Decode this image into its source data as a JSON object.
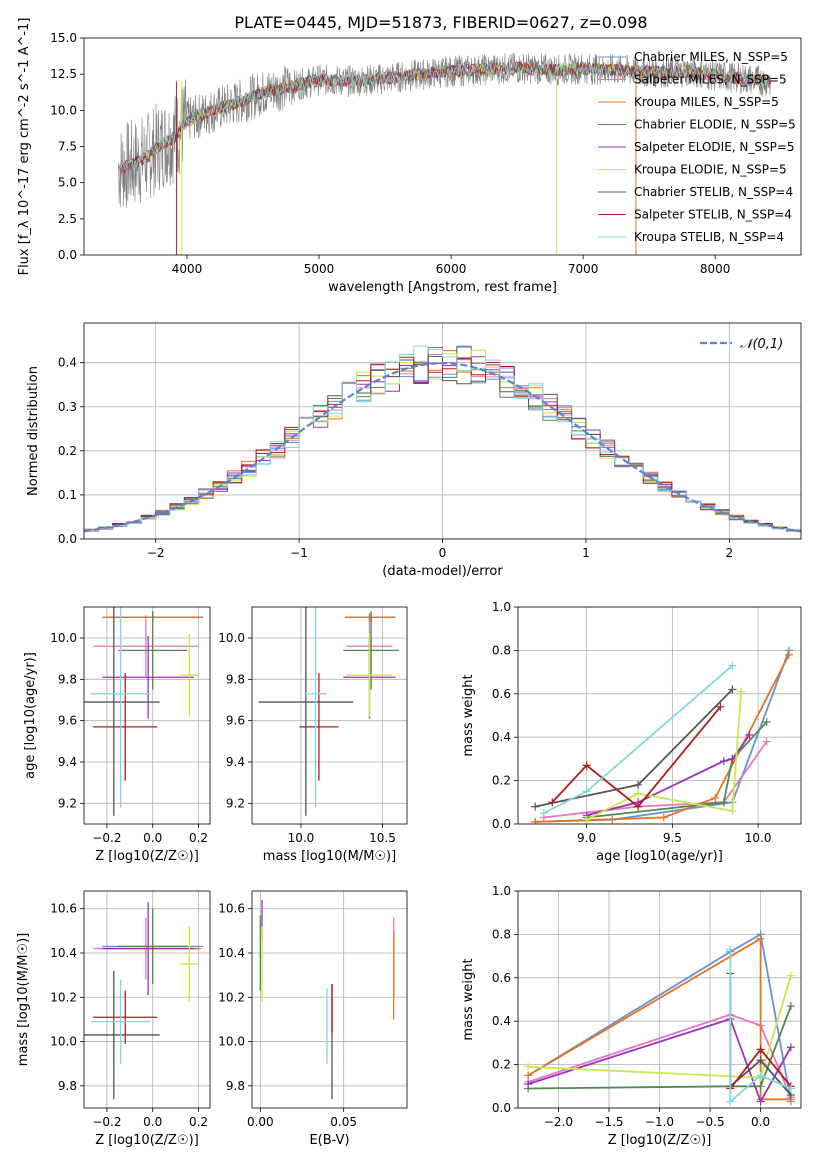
{
  "title": "PLATE=0445, MJD=51873, FIBERID=0627, z=0.098",
  "colors": {
    "Chabrier MILES": "#6a8fd6",
    "Salpeter MILES": "#e377c2",
    "Kroupa MILES": "#e8731e",
    "Chabrier ELODIE": "#4f8a4f",
    "Salpeter ELODIE": "#9b30b8",
    "Kroupa ELODIE": "#cde64a",
    "Chabrier STELIB": "#555555",
    "Salpeter STELIB": "#b01c1c",
    "Kroupa STELIB": "#7fd8e0"
  },
  "chart_data": [
    {
      "type": "line",
      "name": "spectrum",
      "xlabel": "wavelength [Angstrom, rest frame]",
      "ylabel": "Flux [f_λ 10^-17 erg cm^-2 s^-1 A^-1]",
      "xlim": [
        3220,
        8650
      ],
      "ylim": [
        0,
        15
      ],
      "xticks": [
        "4000",
        "5000",
        "6000",
        "7000",
        "8000"
      ],
      "yticks": [
        "0.0",
        "2.5",
        "5.0",
        "7.5",
        "10.0",
        "12.5",
        "15.0"
      ],
      "grid": false,
      "legend": "right",
      "observed": {
        "color": "#808080",
        "x": [
          3500,
          3600,
          3700,
          3800,
          3900,
          4000,
          4200,
          4400,
          4600,
          4800,
          5000,
          5200,
          5400,
          5600,
          5800,
          6000,
          6200,
          6400,
          6600,
          6800,
          7000,
          7200,
          7400,
          7600,
          7800,
          8000,
          8200,
          8400
        ],
        "y": [
          6.0,
          6.3,
          6.8,
          7.6,
          8.1,
          9.3,
          10.0,
          10.6,
          11.3,
          11.7,
          12.1,
          12.0,
          12.1,
          12.3,
          12.5,
          12.7,
          12.8,
          12.9,
          12.9,
          12.8,
          12.9,
          12.8,
          12.7,
          12.6,
          12.7,
          12.4,
          12.2,
          12.0
        ]
      },
      "series": [
        {
          "name": "Chabrier MILES, N_SSP=5"
        },
        {
          "name": "Salpeter MILES, N_SSP=5"
        },
        {
          "name": "Kroupa MILES, N_SSP=5"
        },
        {
          "name": "Chabrier ELODIE, N_SSP=5"
        },
        {
          "name": "Salpeter ELODIE, N_SSP=5"
        },
        {
          "name": "Kroupa ELODIE, N_SSP=5"
        },
        {
          "name": "Chabrier STELIB, N_SSP=4"
        },
        {
          "name": "Salpeter STELIB, N_SSP=4"
        },
        {
          "name": "Kroupa STELIB, N_SSP=4"
        }
      ]
    },
    {
      "type": "bar",
      "name": "residual-histogram",
      "xlabel": "(data-model)/error",
      "ylabel": "Normed distribution",
      "xlim": [
        -2.5,
        2.5
      ],
      "ylim": [
        0,
        0.49
      ],
      "xticks": [
        "−2",
        "−1",
        "0",
        "1",
        "2"
      ],
      "yticks": [
        "0.0",
        "0.1",
        "0.2",
        "0.3",
        "0.4"
      ],
      "grid": true,
      "legend": "top-right",
      "bin_width": 0.1,
      "reference": {
        "name": "𝒩(0,1)",
        "mean": 0,
        "sigma": 1
      }
    },
    {
      "type": "scatter",
      "name": "age-vs-Z",
      "xlabel": "Z [log10(Z/Z☉)]",
      "ylabel": "age [log10(age/yr)]",
      "xlim": [
        -0.3,
        0.25
      ],
      "ylim": [
        9.1,
        10.15
      ],
      "xticks": [
        "−0.2",
        "0.0",
        "0.2"
      ],
      "yticks": [
        "9.2",
        "9.4",
        "9.6",
        "9.8",
        "10.0"
      ],
      "grid": true,
      "points": [
        {
          "series": "Chabrier MILES",
          "x": 0.0,
          "y": 10.1,
          "xerr": 0.22,
          "yerr": 0.02
        },
        {
          "series": "Salpeter MILES",
          "x": -0.03,
          "y": 9.96,
          "xerr": 0.23,
          "yerr": 0.15
        },
        {
          "series": "Kroupa MILES",
          "x": 0.0,
          "y": 10.1,
          "xerr": 0.21,
          "yerr": 0.02
        },
        {
          "series": "Chabrier ELODIE",
          "x": 0.0,
          "y": 9.94,
          "xerr": 0.15,
          "yerr": 0.19
        },
        {
          "series": "Salpeter ELODIE",
          "x": -0.02,
          "y": 9.81,
          "xerr": 0.2,
          "yerr": 0.2
        },
        {
          "series": "Kroupa ELODIE",
          "x": 0.16,
          "y": 9.82,
          "xerr": 0.04,
          "yerr": 0.2
        },
        {
          "series": "Chabrier STELIB",
          "x": -0.17,
          "y": 9.69,
          "xerr": 0.2,
          "yerr": 0.55
        },
        {
          "series": "Salpeter STELIB",
          "x": -0.12,
          "y": 9.57,
          "xerr": 0.14,
          "yerr": 0.26
        },
        {
          "series": "Kroupa STELIB",
          "x": -0.14,
          "y": 9.73,
          "xerr": 0.13,
          "yerr": 0.55
        }
      ]
    },
    {
      "type": "scatter",
      "name": "age-vs-mass",
      "xlabel": "mass [log10(M/M☉)]",
      "ylabel": "",
      "xlim": [
        9.7,
        10.65
      ],
      "ylim": [
        9.1,
        10.15
      ],
      "xticks": [
        "10.0",
        "10.5"
      ],
      "yticks": [
        "9.2",
        "9.4",
        "9.6",
        "9.8",
        "10.0"
      ],
      "grid": true,
      "points": [
        {
          "series": "Chabrier MILES",
          "x": 10.43,
          "y": 10.1,
          "xerr": 0.15,
          "yerr": 0.02
        },
        {
          "series": "Salpeter MILES",
          "x": 10.42,
          "y": 9.96,
          "xerr": 0.14,
          "yerr": 0.15
        },
        {
          "series": "Kroupa MILES",
          "x": 10.42,
          "y": 10.1,
          "xerr": 0.15,
          "yerr": 0.02
        },
        {
          "series": "Chabrier ELODIE",
          "x": 10.43,
          "y": 9.94,
          "xerr": 0.17,
          "yerr": 0.19
        },
        {
          "series": "Salpeter ELODIE",
          "x": 10.42,
          "y": 9.81,
          "xerr": 0.16,
          "yerr": 0.2
        },
        {
          "series": "Kroupa ELODIE",
          "x": 10.42,
          "y": 9.82,
          "xerr": 0.14,
          "yerr": 0.2
        },
        {
          "series": "Chabrier STELIB",
          "x": 10.03,
          "y": 9.69,
          "xerr": 0.29,
          "yerr": 0.55
        },
        {
          "series": "Salpeter STELIB",
          "x": 10.11,
          "y": 9.57,
          "xerr": 0.12,
          "yerr": 0.26
        },
        {
          "series": "Kroupa STELIB",
          "x": 10.09,
          "y": 9.73,
          "xerr": 0.07,
          "yerr": 0.55
        }
      ]
    },
    {
      "type": "line",
      "name": "mass-weight-vs-age",
      "xlabel": "age [log10(age/yr)]",
      "ylabel": "mass weight",
      "xlim": [
        8.6,
        10.25
      ],
      "ylim": [
        0,
        1
      ],
      "xticks": [
        "9.0",
        "9.5",
        "10.0"
      ],
      "yticks": [
        "0.0",
        "0.2",
        "0.4",
        "0.6",
        "0.8",
        "1.0"
      ],
      "grid": true,
      "series": [
        {
          "series": "Chabrier MILES",
          "x": [
            8.7,
            9.15,
            9.85,
            10.18
          ],
          "y": [
            0.01,
            0.02,
            0.1,
            0.8
          ]
        },
        {
          "series": "Salpeter MILES",
          "x": [
            8.75,
            9.3,
            9.8,
            10.05
          ],
          "y": [
            0.03,
            0.08,
            0.1,
            0.38
          ]
        },
        {
          "series": "Kroupa MILES",
          "x": [
            8.7,
            9.45,
            9.75,
            10.18
          ],
          "y": [
            0.01,
            0.03,
            0.12,
            0.78
          ]
        },
        {
          "series": "Chabrier ELODIE",
          "x": [
            9.0,
            9.8,
            9.85,
            10.05
          ],
          "y": [
            0.03,
            0.1,
            0.3,
            0.47
          ]
        },
        {
          "series": "Salpeter ELODIE",
          "x": [
            9.0,
            9.3,
            9.8,
            9.85,
            9.95
          ],
          "y": [
            0.04,
            0.1,
            0.29,
            0.3,
            0.41
          ]
        },
        {
          "series": "Kroupa ELODIE",
          "x": [
            9.0,
            9.3,
            9.85,
            9.9
          ],
          "y": [
            0.02,
            0.14,
            0.06,
            0.61
          ]
        },
        {
          "series": "Chabrier STELIB",
          "x": [
            8.7,
            9.3,
            9.85
          ],
          "y": [
            0.08,
            0.18,
            0.62
          ]
        },
        {
          "series": "Salpeter STELIB",
          "x": [
            8.8,
            9.0,
            9.3,
            9.78
          ],
          "y": [
            0.1,
            0.27,
            0.08,
            0.54
          ]
        },
        {
          "series": "Kroupa STELIB",
          "x": [
            8.75,
            9.0,
            9.85
          ],
          "y": [
            0.05,
            0.15,
            0.73
          ]
        }
      ]
    },
    {
      "type": "scatter",
      "name": "mass-vs-Z",
      "xlabel": "Z [log10(Z/Z☉)]",
      "ylabel": "mass [log10(M/M☉)]",
      "xlim": [
        -0.3,
        0.25
      ],
      "ylim": [
        9.7,
        10.68
      ],
      "xticks": [
        "−0.2",
        "0.0",
        "0.2"
      ],
      "yticks": [
        "9.8",
        "10.0",
        "10.2",
        "10.4",
        "10.6"
      ],
      "grid": true,
      "points": [
        {
          "series": "Chabrier MILES",
          "x": 0.0,
          "y": 10.43,
          "xerr": 0.22,
          "yerr": 0.02
        },
        {
          "series": "Salpeter MILES",
          "x": -0.03,
          "y": 10.42,
          "xerr": 0.23,
          "yerr": 0.14
        },
        {
          "series": "Kroupa MILES",
          "x": 0.0,
          "y": 10.42,
          "xerr": 0.21,
          "yerr": 0.02
        },
        {
          "series": "Chabrier ELODIE",
          "x": 0.0,
          "y": 10.43,
          "xerr": 0.15,
          "yerr": 0.17
        },
        {
          "series": "Salpeter ELODIE",
          "x": -0.02,
          "y": 10.42,
          "xerr": 0.2,
          "yerr": 0.21
        },
        {
          "series": "Kroupa ELODIE",
          "x": 0.16,
          "y": 10.35,
          "xerr": 0.04,
          "yerr": 0.17
        },
        {
          "series": "Chabrier STELIB",
          "x": -0.17,
          "y": 10.03,
          "xerr": 0.2,
          "yerr": 0.29
        },
        {
          "series": "Salpeter STELIB",
          "x": -0.12,
          "y": 10.11,
          "xerr": 0.14,
          "yerr": 0.12
        },
        {
          "series": "Kroupa STELIB",
          "x": -0.14,
          "y": 10.09,
          "xerr": 0.13,
          "yerr": 0.19
        }
      ]
    },
    {
      "type": "scatter",
      "name": "mass-vs-ebv",
      "xlabel": "E(B-V)",
      "ylabel": "",
      "xlim": [
        -0.005,
        0.088
      ],
      "ylim": [
        9.7,
        10.68
      ],
      "xticks": [
        "0.00",
        "0.05"
      ],
      "yticks": [
        "9.8",
        "10.0",
        "10.2",
        "10.4",
        "10.6"
      ],
      "grid": true,
      "points": [
        {
          "series": "Chabrier MILES",
          "x": 0.08,
          "y": 10.35,
          "yerr": 0.15
        },
        {
          "series": "Salpeter MILES",
          "x": 0.08,
          "y": 10.4,
          "yerr": 0.16
        },
        {
          "series": "Kroupa MILES",
          "x": 0.08,
          "y": 10.3,
          "yerr": 0.2
        },
        {
          "series": "Chabrier ELODIE",
          "x": 0.0,
          "y": 10.4,
          "yerr": 0.17
        },
        {
          "series": "Salpeter ELODIE",
          "x": 0.001,
          "y": 10.55,
          "yerr": 0.09
        },
        {
          "series": "Kroupa ELODIE",
          "x": 0.001,
          "y": 10.35,
          "yerr": 0.17
        },
        {
          "series": "Chabrier STELIB",
          "x": 0.043,
          "y": 10.0,
          "yerr": 0.26
        },
        {
          "series": "Salpeter STELIB",
          "x": 0.043,
          "y": 10.15,
          "yerr": 0.11
        },
        {
          "series": "Kroupa STELIB",
          "x": 0.04,
          "y": 10.07,
          "yerr": 0.17
        }
      ]
    },
    {
      "type": "line",
      "name": "mass-weight-vs-Z",
      "xlabel": "Z [log10(Z/Z☉)]",
      "ylabel": "mass weight",
      "xlim": [
        -2.4,
        0.4
      ],
      "ylim": [
        0,
        1
      ],
      "xticks": [
        "−2.0",
        "−1.5",
        "−1.0",
        "−0.5",
        "0.0"
      ],
      "yticks": [
        "0.0",
        "0.2",
        "0.4",
        "0.6",
        "0.8",
        "1.0"
      ],
      "grid": true,
      "series": [
        {
          "series": "Chabrier MILES",
          "x": [
            -2.3,
            -0.3,
            0.0,
            0.3
          ],
          "y": [
            0.15,
            0.72,
            0.8,
            0.03
          ]
        },
        {
          "series": "Salpeter MILES",
          "x": [
            -2.3,
            -0.3,
            0.0,
            0.3
          ],
          "y": [
            0.12,
            0.43,
            0.38,
            0.05
          ]
        },
        {
          "series": "Kroupa MILES",
          "x": [
            -2.3,
            0.0,
            0.0,
            0.3
          ],
          "y": [
            0.15,
            0.78,
            0.04,
            0.04
          ]
        },
        {
          "series": "Chabrier ELODIE",
          "x": [
            -2.3,
            -0.3,
            0.0,
            0.3
          ],
          "y": [
            0.09,
            0.1,
            0.1,
            0.47
          ]
        },
        {
          "series": "Salpeter ELODIE",
          "x": [
            -2.3,
            -0.3,
            0.0,
            0.3
          ],
          "y": [
            0.11,
            0.41,
            0.03,
            0.28
          ]
        },
        {
          "series": "Kroupa ELODIE",
          "x": [
            -2.3,
            0.0,
            0.3
          ],
          "y": [
            0.19,
            0.14,
            0.61
          ]
        },
        {
          "series": "Chabrier STELIB",
          "x": [
            -0.3,
            -0.3,
            0.0,
            0.3
          ],
          "y": [
            0.62,
            0.1,
            0.22,
            0.06
          ]
        },
        {
          "series": "Salpeter STELIB",
          "x": [
            -0.3,
            0.0,
            0.3
          ],
          "y": [
            0.09,
            0.27,
            0.1
          ]
        },
        {
          "series": "Kroupa STELIB",
          "x": [
            -0.3,
            -0.3,
            0.0,
            0.3
          ],
          "y": [
            0.73,
            0.03,
            0.15,
            0.09
          ]
        }
      ]
    }
  ]
}
